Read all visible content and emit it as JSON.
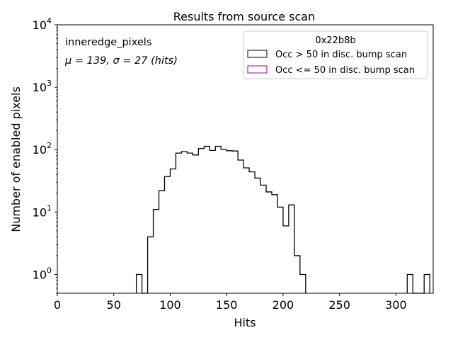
{
  "chart_data": {
    "type": "histogram",
    "title": "Results from source scan",
    "xlabel": "Hits",
    "ylabel": "Number of enabled pixels",
    "xlim": [
      0,
      333
    ],
    "ylim": [
      0.5,
      10000
    ],
    "yscale": "log",
    "xticks": [
      "0",
      "50",
      "100",
      "150",
      "200",
      "250",
      "300"
    ],
    "xtick_values": [
      0,
      50,
      100,
      150,
      200,
      250,
      300
    ],
    "yticks": [
      {
        "value": 1,
        "base": "10",
        "exp": "0"
      },
      {
        "value": 10,
        "base": "10",
        "exp": "1"
      },
      {
        "value": 100,
        "base": "10",
        "exp": "2"
      },
      {
        "value": 1000,
        "base": "10",
        "exp": "3"
      },
      {
        "value": 10000,
        "base": "10",
        "exp": "4"
      }
    ],
    "bin_width": 5,
    "annotations": {
      "name": "inneredge_pixels",
      "stats": "μ = 139, σ = 27 (hits)"
    },
    "legend": {
      "title": "0x22b8b",
      "placement": "top-right",
      "entries": [
        {
          "label": "Occ > 50 in disc. bump scan",
          "color": "#000000"
        },
        {
          "label": "Occ <= 50 in disc. bump scan",
          "color": "#990099"
        }
      ]
    },
    "series": [
      {
        "name": "Occ > 50 in disc. bump scan",
        "color": "#000000",
        "bins": [
          [
            70,
            1
          ],
          [
            75,
            0
          ],
          [
            80,
            4
          ],
          [
            85,
            11
          ],
          [
            90,
            22
          ],
          [
            95,
            37
          ],
          [
            100,
            49
          ],
          [
            105,
            88
          ],
          [
            110,
            93
          ],
          [
            115,
            88
          ],
          [
            120,
            82
          ],
          [
            125,
            104
          ],
          [
            130,
            113
          ],
          [
            135,
            97
          ],
          [
            140,
            113
          ],
          [
            145,
            101
          ],
          [
            150,
            96
          ],
          [
            155,
            95
          ],
          [
            160,
            68
          ],
          [
            165,
            51
          ],
          [
            170,
            44
          ],
          [
            175,
            35
          ],
          [
            180,
            27
          ],
          [
            185,
            21
          ],
          [
            190,
            19
          ],
          [
            195,
            12
          ],
          [
            200,
            6
          ],
          [
            205,
            13
          ],
          [
            210,
            2
          ],
          [
            215,
            1
          ],
          [
            310,
            1
          ],
          [
            315,
            0
          ],
          [
            320,
            0
          ],
          [
            325,
            1
          ]
        ]
      },
      {
        "name": "Occ <= 50 in disc. bump scan",
        "color": "#990099",
        "bins": []
      }
    ]
  }
}
